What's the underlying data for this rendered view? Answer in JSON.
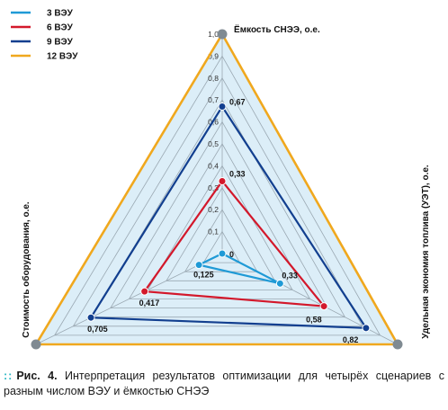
{
  "chart_data": {
    "type": "radar",
    "axes": [
      {
        "key": "top",
        "label": "Ёмкость СНЭЭ, о.е."
      },
      {
        "key": "right",
        "label": "Удельная экономия топлива (УЭТ), о.е."
      },
      {
        "key": "left",
        "label": "Стоимость оборудования, о.е."
      }
    ],
    "range": [
      0,
      1.0
    ],
    "ticks": [
      "0",
      "0,1",
      "0,2",
      "0,3",
      "0,4",
      "0,5",
      "0,6",
      "0,7",
      "0,8",
      "0,9",
      "1,0"
    ],
    "series": [
      {
        "name": "3 ВЭУ",
        "color": "#1f9ad6",
        "values": [
          0.0,
          0.33,
          0.125
        ],
        "labels": [
          "0",
          "0,33",
          "0,125"
        ]
      },
      {
        "name": "6 ВЭУ",
        "color": "#d3182b",
        "values": [
          0.33,
          0.58,
          0.417
        ],
        "labels": [
          "0,33",
          "0,58",
          "0,417"
        ]
      },
      {
        "name": "9 ВЭУ",
        "color": "#123f8f",
        "values": [
          0.67,
          0.82,
          0.705
        ],
        "labels": [
          "0,67",
          "0,82",
          "0,705"
        ]
      },
      {
        "name": "12 ВЭУ",
        "color": "#f0a81e",
        "values": [
          1.0,
          1.0,
          1.0
        ],
        "labels": [
          "",
          "",
          ""
        ]
      }
    ],
    "grid": true,
    "legend": "top-left"
  },
  "caption": {
    "label": "Рис. 4.",
    "text": "Интерпретация результатов оптимизации для четырёх сценариев с разным числом ВЭУ и ёмкостью СНЭЭ"
  },
  "colors": {
    "fill": "#dceef8",
    "grid": "#9aa8b2",
    "vertex": "#7f8a92",
    "dots": "#2bb6c4"
  }
}
